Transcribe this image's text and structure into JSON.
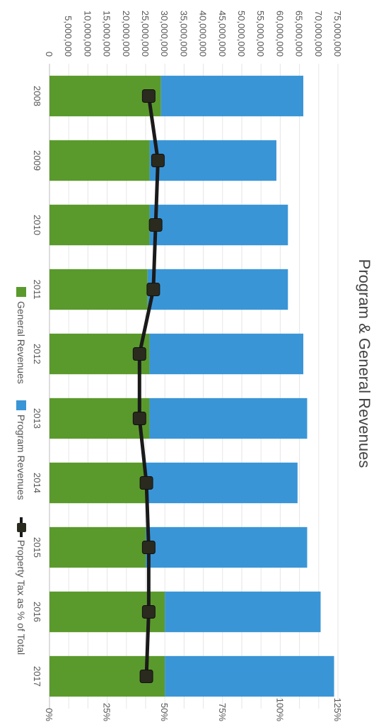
{
  "chart_data": {
    "type": "bar",
    "stacked": true,
    "orientation": "rotated-90-clockwise",
    "title": "Program & General Revenues",
    "categories": [
      "2008",
      "2009",
      "2010",
      "2011",
      "2012",
      "2013",
      "2014",
      "2015",
      "2016",
      "2017"
    ],
    "series": [
      {
        "name": "General Revenues",
        "color": "#5a9a2c",
        "values": [
          29000000,
          26000000,
          26000000,
          25500000,
          26000000,
          26000000,
          25000000,
          25000000,
          30000000,
          30000000
        ]
      },
      {
        "name": "Program Revenues",
        "color": "#3a95d6",
        "values": [
          37000000,
          33000000,
          36000000,
          36500000,
          40000000,
          41000000,
          39500000,
          42000000,
          40500000,
          44000000
        ]
      },
      {
        "name": "Property Tax as % of Total",
        "type": "line",
        "axis": "secondary",
        "color": "#1a1a1a",
        "values": [
          0.43,
          0.47,
          0.46,
          0.45,
          0.39,
          0.39,
          0.42,
          0.43,
          0.43,
          0.42
        ]
      }
    ],
    "y_axis": {
      "ylim": [
        0,
        75000000
      ],
      "tick_labels": [
        "0",
        "5,000,000",
        "10,000,000",
        "15,000,000",
        "20,000,000",
        "25,000,000",
        "30,000,000",
        "35,000,000",
        "40,000,000",
        "45,000,000",
        "50,000,000",
        "55,000,000",
        "60,000,000",
        "65,000,000",
        "70,000,000",
        "75,000,000"
      ]
    },
    "y2_axis": {
      "ylim": [
        0,
        1.25
      ],
      "tick_labels": [
        "0%",
        "25%",
        "50%",
        "75%",
        "100%",
        "125%"
      ]
    },
    "grid": true,
    "legend_position": "bottom"
  }
}
